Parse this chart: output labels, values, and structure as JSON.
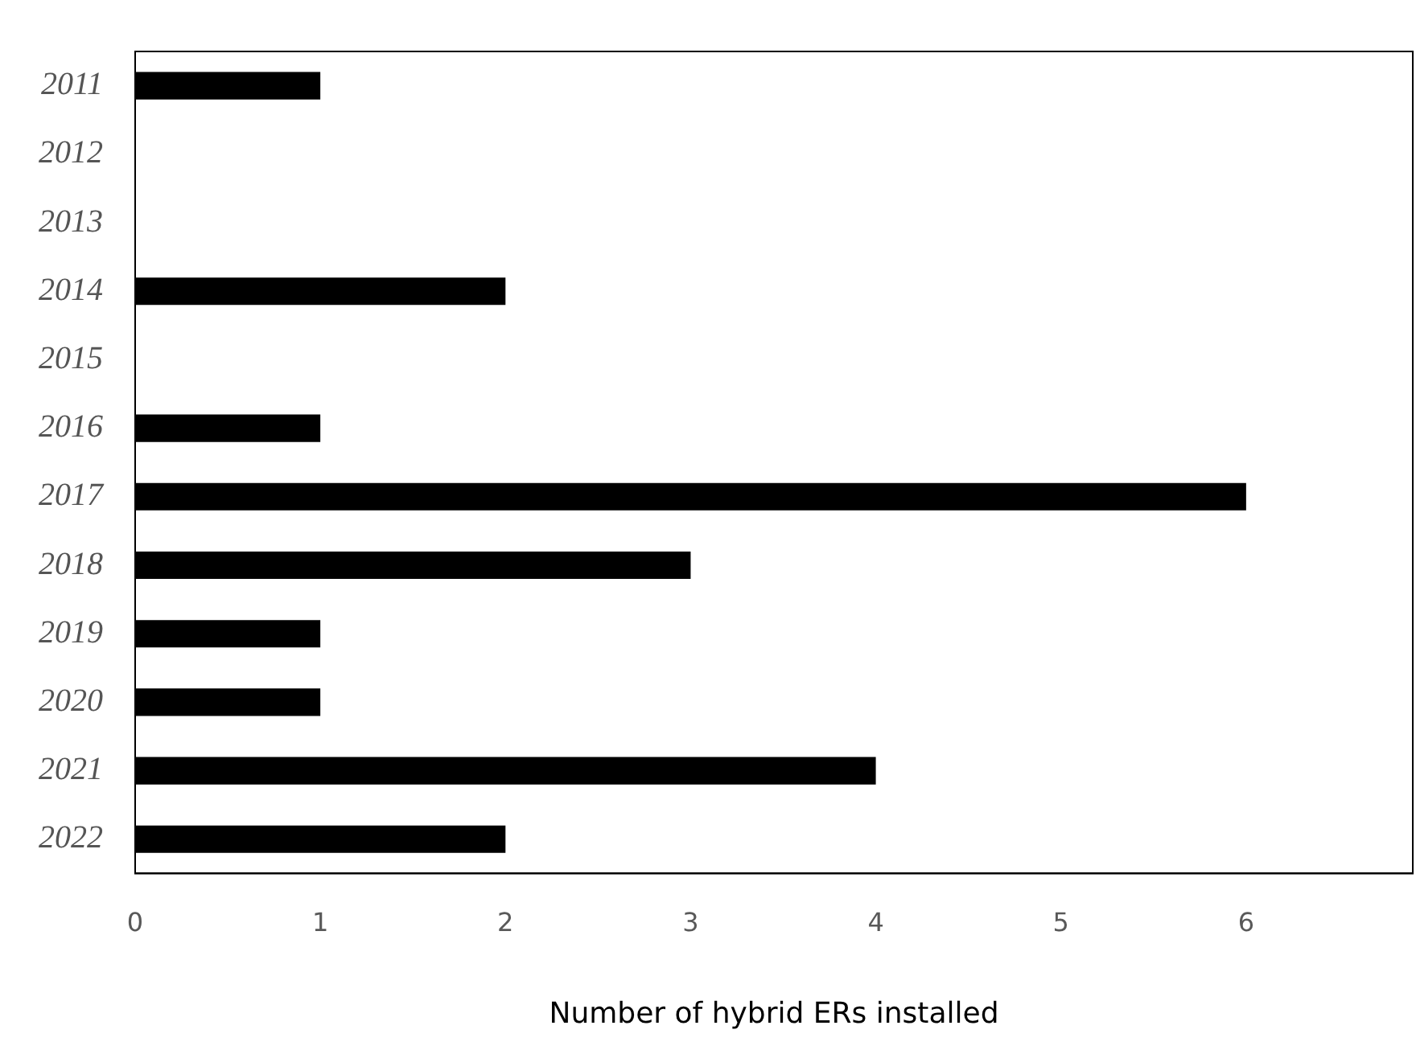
{
  "chart_data": {
    "type": "bar",
    "orientation": "horizontal",
    "xlabel": "Number of hybrid ERs installed",
    "categories": [
      "2011",
      "2012",
      "2013",
      "2014",
      "2015",
      "2016",
      "2017",
      "2018",
      "2019",
      "2020",
      "2021",
      "2022"
    ],
    "values": [
      1,
      0,
      0,
      2,
      0,
      1,
      6,
      3,
      1,
      1,
      4,
      2
    ],
    "color": "#000000",
    "xlim": [
      0,
      6.9
    ],
    "xticks": [
      0,
      1,
      2,
      3,
      4,
      5,
      6
    ]
  }
}
